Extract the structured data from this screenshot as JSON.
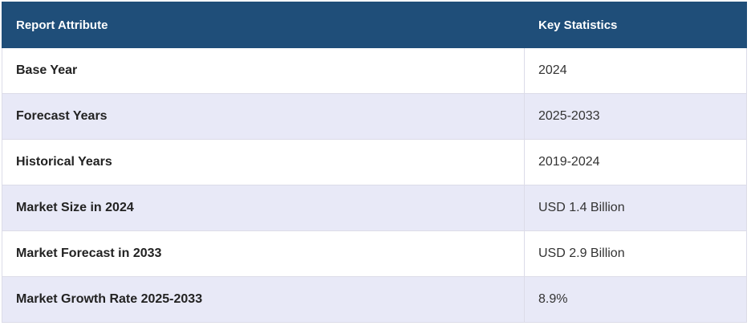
{
  "table": {
    "header": [
      "Report Attribute",
      "Key Statistics"
    ],
    "rows": [
      [
        "Base Year",
        "2024"
      ],
      [
        "Forecast Years",
        "2025-2033"
      ],
      [
        "Historical Years",
        "2019-2024"
      ],
      [
        "Market Size in 2024",
        "USD 1.4 Billion"
      ],
      [
        "Market Forecast in 2033",
        "USD 2.9 Billion"
      ],
      [
        "Market Growth Rate 2025-2033",
        "8.9%"
      ]
    ]
  }
}
